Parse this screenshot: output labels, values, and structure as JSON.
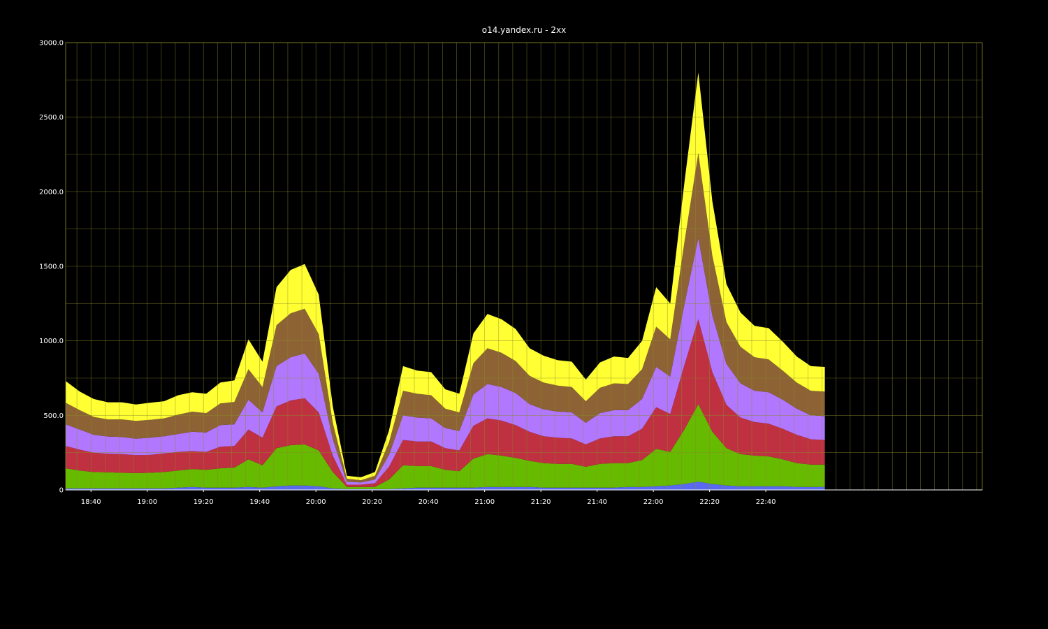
{
  "chart_data": {
    "type": "area",
    "stacked": true,
    "title": "o14.yandex.ru - 2xx",
    "xlabel": "",
    "ylabel": "",
    "grid": true,
    "background_color": "#000000",
    "grid_color": "#8a8a2a",
    "axis_text_color": "#ffffff",
    "ylim": [
      0,
      3000
    ],
    "yticks": [
      0,
      500,
      1000,
      1500,
      2000,
      2500,
      3000
    ],
    "ytick_labels": [
      "0",
      "500.0",
      "1000.0",
      "1500.0",
      "2000.0",
      "2500.0",
      "3000.0"
    ],
    "xlim": [
      "18:31",
      "23:57"
    ],
    "xticks": [
      "18:40",
      "19:00",
      "19:20",
      "19:40",
      "20:00",
      "20:20",
      "20:40",
      "21:00",
      "21:20",
      "21:40",
      "22:00",
      "22:20",
      "22:40"
    ],
    "x": [
      "18:31",
      "18:36",
      "18:41",
      "18:46",
      "18:51",
      "18:56",
      "19:01",
      "19:06",
      "19:11",
      "19:16",
      "19:21",
      "19:26",
      "19:31",
      "19:36",
      "19:41",
      "19:46",
      "19:51",
      "19:56",
      "20:01",
      "20:06",
      "20:11",
      "20:16",
      "20:21",
      "20:26",
      "20:31",
      "20:36",
      "20:41",
      "20:46",
      "20:51",
      "20:56",
      "21:01",
      "21:06",
      "21:11",
      "21:16",
      "21:21",
      "21:26",
      "21:31",
      "21:36",
      "21:41",
      "21:46",
      "21:51",
      "21:56",
      "22:01",
      "22:06",
      "22:11",
      "22:16",
      "22:21",
      "22:26",
      "22:31",
      "22:36",
      "22:41",
      "22:46",
      "22:51",
      "22:56",
      "23:01"
    ],
    "series": [
      {
        "color": "#5a6af0",
        "values": [
          10,
          10,
          10,
          10,
          10,
          10,
          10,
          10,
          15,
          20,
          15,
          15,
          15,
          20,
          15,
          25,
          30,
          30,
          25,
          10,
          5,
          5,
          5,
          5,
          10,
          15,
          15,
          15,
          15,
          15,
          20,
          20,
          20,
          20,
          15,
          15,
          15,
          15,
          15,
          15,
          20,
          20,
          25,
          30,
          40,
          55,
          40,
          30,
          25,
          25,
          25,
          25,
          20,
          20,
          20
        ]
      },
      {
        "color": "#66bb00",
        "values": [
          135,
          120,
          110,
          108,
          105,
          103,
          105,
          110,
          115,
          120,
          120,
          130,
          135,
          185,
          150,
          255,
          270,
          275,
          240,
          110,
          15,
          15,
          15,
          65,
          155,
          145,
          145,
          120,
          110,
          195,
          220,
          210,
          195,
          175,
          165,
          160,
          160,
          140,
          160,
          165,
          160,
          180,
          250,
          225,
          365,
          520,
          350,
          250,
          215,
          205,
          200,
          180,
          160,
          150,
          150
        ]
      },
      {
        "color": "#bf3040",
        "values": [
          150,
          140,
          130,
          125,
          125,
          120,
          120,
          125,
          125,
          120,
          120,
          145,
          145,
          200,
          185,
          280,
          300,
          310,
          255,
          110,
          15,
          15,
          25,
          85,
          170,
          165,
          165,
          145,
          140,
          220,
          240,
          235,
          220,
          195,
          180,
          175,
          170,
          150,
          170,
          180,
          180,
          210,
          280,
          255,
          430,
          570,
          400,
          290,
          245,
          225,
          220,
          205,
          190,
          170,
          165
        ]
      },
      {
        "color": "#b277ff",
        "values": [
          145,
          135,
          120,
          115,
          115,
          110,
          115,
          115,
          120,
          130,
          130,
          145,
          145,
          200,
          170,
          270,
          290,
          300,
          260,
          110,
          20,
          15,
          25,
          80,
          165,
          160,
          155,
          135,
          130,
          210,
          230,
          225,
          215,
          185,
          180,
          175,
          175,
          145,
          170,
          175,
          175,
          200,
          270,
          250,
          405,
          545,
          380,
          275,
          230,
          210,
          210,
          195,
          175,
          160,
          160
        ]
      },
      {
        "color": "#8d6335",
        "values": [
          145,
          130,
          120,
          115,
          118,
          120,
          120,
          120,
          130,
          135,
          130,
          145,
          150,
          205,
          170,
          275,
          295,
          300,
          265,
          110,
          20,
          15,
          25,
          85,
          165,
          160,
          155,
          130,
          125,
          210,
          240,
          230,
          215,
          190,
          180,
          175,
          170,
          145,
          170,
          180,
          175,
          200,
          270,
          250,
          415,
          570,
          400,
          280,
          245,
          225,
          220,
          195,
          175,
          165,
          165
        ]
      },
      {
        "color": "#ffff33",
        "values": [
          145,
          125,
          120,
          115,
          115,
          110,
          115,
          115,
          130,
          130,
          130,
          140,
          145,
          200,
          170,
          255,
          290,
          300,
          265,
          110,
          20,
          20,
          25,
          80,
          165,
          155,
          155,
          130,
          125,
          200,
          230,
          225,
          215,
          185,
          180,
          170,
          170,
          145,
          170,
          180,
          175,
          190,
          265,
          240,
          400,
          540,
          365,
          255,
          230,
          210,
          210,
          195,
          175,
          165,
          165
        ]
      }
    ]
  }
}
